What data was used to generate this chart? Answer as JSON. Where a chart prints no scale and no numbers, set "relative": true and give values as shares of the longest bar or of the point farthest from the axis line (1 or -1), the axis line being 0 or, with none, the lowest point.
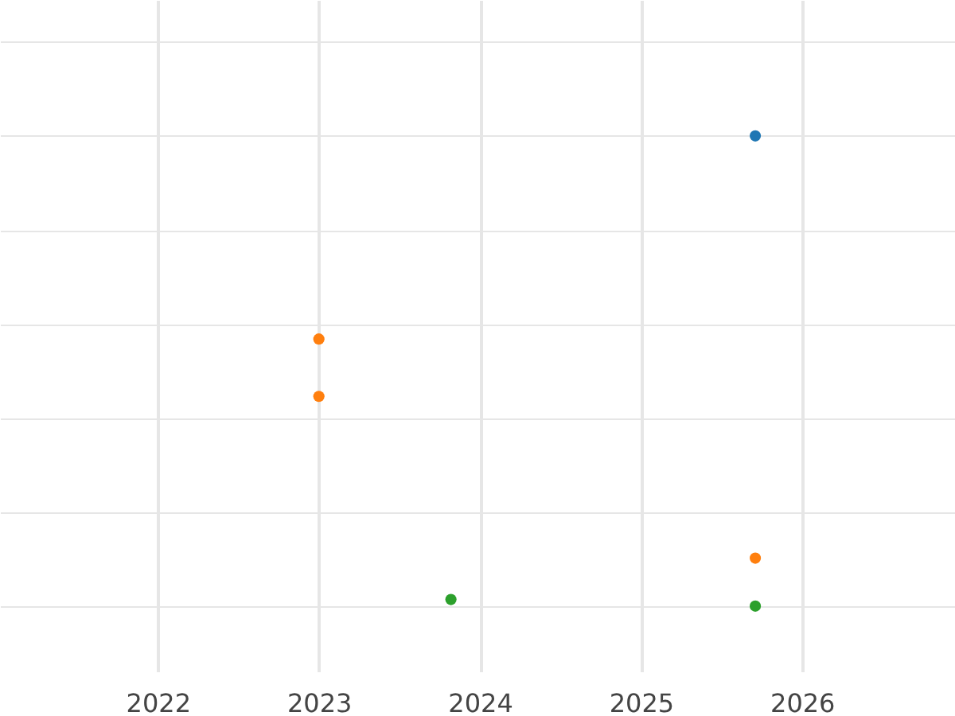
{
  "chart_data": {
    "type": "scatter",
    "relative": true,
    "xlim": [
      2021.02,
      2026.95
    ],
    "xticks": [
      2022,
      2023,
      2024,
      2025,
      2026
    ],
    "grid": true,
    "legend": false,
    "marker": "circle",
    "tick_labels": "x",
    "series": [
      {
        "color": "#1f77b4",
        "x": [
          2025.71
        ],
        "values": [
          1
        ]
      },
      {
        "color": "#ff7f0e",
        "x": [
          2023.0,
          2023.0,
          2025.71
        ],
        "values": [
          0.568,
          0.446,
          0.102
        ]
      },
      {
        "color": "#2ca02c",
        "x": [
          2023.82,
          2025.71
        ],
        "values": [
          0.014,
          0
        ]
      }
    ]
  }
}
